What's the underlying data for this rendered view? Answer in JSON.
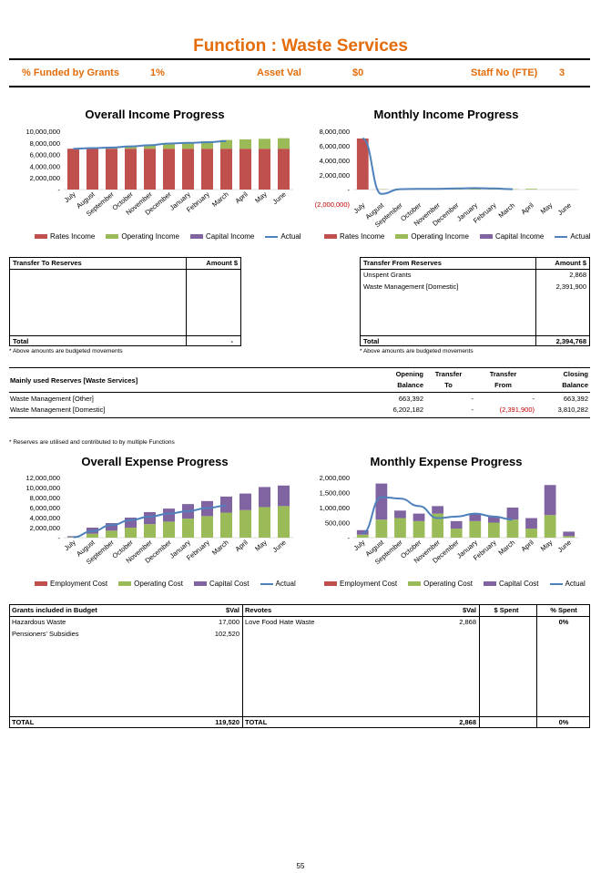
{
  "page": {
    "title": "Function : Waste Services",
    "page_number": "55"
  },
  "summary": {
    "funded_label": "% Funded by Grants",
    "funded_value": "1%",
    "asset_label": "Asset Val",
    "asset_value": "$0",
    "staff_label": "Staff No (FTE)",
    "staff_value": "3"
  },
  "colors": {
    "red": "#c0504d",
    "green": "#9bbb59",
    "purple": "#8064a2",
    "blue": "#4f81bd",
    "accent": "#e46c0a"
  },
  "income_legend": [
    "Rates Income",
    "Operating Income",
    "Capital Income",
    "Actual"
  ],
  "expense_legend": [
    "Employment Cost",
    "Operating Cost",
    "Capital Cost",
    "Actual"
  ],
  "chart_data": [
    {
      "type": "bar",
      "title": "Overall Income Progress",
      "stacked": true,
      "categories": [
        "July",
        "August",
        "September",
        "October",
        "November",
        "December",
        "January",
        "February",
        "March",
        "April",
        "May",
        "June"
      ],
      "yticks": [
        "10,000,000",
        "8,000,000",
        "6,000,000",
        "4,000,000",
        "2,000,000",
        "-"
      ],
      "ylim": [
        0,
        10000000
      ],
      "series": [
        {
          "name": "Rates Income",
          "values": [
            7000000,
            7000000,
            7000000,
            7000000,
            7000000,
            7000000,
            7000000,
            7000000,
            7000000,
            7000000,
            7000000,
            7000000
          ]
        },
        {
          "name": "Operating Income",
          "values": [
            0,
            100000,
            200000,
            400000,
            600000,
            900000,
            1100000,
            1300000,
            1500000,
            1600000,
            1700000,
            1800000
          ]
        },
        {
          "name": "Capital Income",
          "values": [
            0,
            0,
            0,
            0,
            0,
            0,
            0,
            0,
            0,
            0,
            0,
            0
          ]
        }
      ],
      "actual": [
        7000000,
        7100000,
        7200000,
        7400000,
        7600000,
        7900000,
        8000000,
        8100000,
        8300000
      ]
    },
    {
      "type": "bar",
      "title": "Monthly Income Progress",
      "stacked": true,
      "categories": [
        "July",
        "August",
        "September",
        "October",
        "November",
        "December",
        "January",
        "February",
        "March",
        "April",
        "May",
        "June"
      ],
      "yticks": [
        "8,000,000",
        "6,000,000",
        "4,000,000",
        "2,000,000",
        "-",
        "(2,000,000)"
      ],
      "ylim": [
        -2000000,
        8000000
      ],
      "series": [
        {
          "name": "Rates Income",
          "values": [
            7000000,
            0,
            0,
            0,
            0,
            0,
            0,
            0,
            0,
            0,
            0,
            0
          ]
        },
        {
          "name": "Operating Income",
          "values": [
            0,
            50000,
            100000,
            100000,
            150000,
            100000,
            150000,
            200000,
            50000,
            100000,
            0,
            0
          ]
        },
        {
          "name": "Capital Income",
          "values": [
            0,
            0,
            0,
            0,
            0,
            0,
            0,
            0,
            0,
            0,
            0,
            0
          ]
        }
      ],
      "actual": [
        7000000,
        -600000,
        50000,
        100000,
        100000,
        150000,
        200000,
        150000,
        50000
      ]
    },
    {
      "type": "bar",
      "title": "Overall Expense Progress",
      "stacked": true,
      "categories": [
        "July",
        "August",
        "September",
        "October",
        "November",
        "December",
        "January",
        "February",
        "March",
        "April",
        "May",
        "June"
      ],
      "yticks": [
        "12,000,000",
        "10,000,000",
        "8,000,000",
        "6,000,000",
        "4,000,000",
        "2,000,000",
        "-"
      ],
      "ylim": [
        0,
        12000000
      ],
      "series": [
        {
          "name": "Employment Cost",
          "values": [
            0,
            0,
            0,
            0,
            0,
            0,
            0,
            0,
            0,
            0,
            0,
            0
          ]
        },
        {
          "name": "Operating Cost",
          "values": [
            100000,
            800000,
            1400000,
            2000000,
            2700000,
            3200000,
            3800000,
            4300000,
            5000000,
            5500000,
            6100000,
            6300000
          ]
        },
        {
          "name": "Capital Cost",
          "values": [
            200000,
            1200000,
            1500000,
            2000000,
            2400000,
            2600000,
            2900000,
            3000000,
            3200000,
            3300000,
            4000000,
            4100000
          ]
        }
      ],
      "actual": [
        100000,
        1300000,
        2500000,
        3500000,
        4200000,
        4800000,
        5300000,
        5900000,
        6400000
      ]
    },
    {
      "type": "bar",
      "title": "Monthly Expense Progress",
      "stacked": true,
      "categories": [
        "July",
        "August",
        "September",
        "October",
        "November",
        "December",
        "January",
        "February",
        "March",
        "April",
        "May",
        "June"
      ],
      "yticks": [
        "2,000,000",
        "1,500,000",
        "1,000,000",
        "500,000",
        "-"
      ],
      "ylim": [
        0,
        2000000
      ],
      "series": [
        {
          "name": "Employment Cost",
          "values": [
            0,
            0,
            0,
            0,
            0,
            0,
            0,
            0,
            0,
            0,
            0,
            0
          ]
        },
        {
          "name": "Operating Cost",
          "values": [
            100000,
            600000,
            650000,
            550000,
            800000,
            300000,
            550000,
            500000,
            600000,
            300000,
            750000,
            50000
          ]
        },
        {
          "name": "Capital Cost",
          "values": [
            150000,
            1200000,
            250000,
            250000,
            250000,
            250000,
            250000,
            200000,
            400000,
            350000,
            1000000,
            150000
          ]
        }
      ],
      "actual": [
        150000,
        1350000,
        1300000,
        1050000,
        650000,
        700000,
        800000,
        700000,
        600000
      ]
    }
  ],
  "transfer_to": {
    "header": "Transfer To Reserves",
    "amount_header": "Amount $",
    "rows": [],
    "total_label": "Total",
    "total_value": "-",
    "note": "* Above amounts are budgeted movements"
  },
  "transfer_from": {
    "header": "Transfer From Reserves",
    "amount_header": "Amount $",
    "rows": [
      {
        "name": "Unspent Grants",
        "amount": "2,868"
      },
      {
        "name": "Waste Management [Domestic]",
        "amount": "2,391,900"
      }
    ],
    "total_label": "Total",
    "total_value": "2,394,768",
    "note": "* Above amounts are budgeted movements"
  },
  "reserves": {
    "header": "Mainly used Reserves [Waste Services]",
    "cols": [
      [
        "Opening",
        "Balance"
      ],
      [
        "Transfer",
        "To"
      ],
      [
        "Transfer",
        "From"
      ],
      [
        "Closing",
        "Balance"
      ]
    ],
    "rows": [
      {
        "name": "Waste Management [Other]",
        "opening": "663,392",
        "to": "-",
        "from": "-",
        "closing": "663,392"
      },
      {
        "name": "Waste Management [Domestic]",
        "opening": "6,202,182",
        "to": "-",
        "from": "(2,391,900)",
        "closing": "3,810,282"
      }
    ],
    "note": "* Reserves are utilised and contributed to by multiple Functions"
  },
  "grants": {
    "header": "Grants included in Budget",
    "val_header": "$Val",
    "rows": [
      {
        "name": "Hazardous Waste",
        "val": "17,000"
      },
      {
        "name": "Pensioners' Subsidies",
        "val": "102,520"
      }
    ],
    "total_label": "TOTAL",
    "total_value": "119,520"
  },
  "revotes": {
    "header": "Revotes",
    "val_header": "$Val",
    "spent_header": "$ Spent",
    "pct_header": "% Spent",
    "rows": [
      {
        "name": "Love Food Hate Waste",
        "val": "2,868",
        "spent": "",
        "pct": "0%"
      }
    ],
    "total_label": "TOTAL",
    "total_val": "2,868",
    "total_spent": "",
    "total_pct": "0%"
  }
}
